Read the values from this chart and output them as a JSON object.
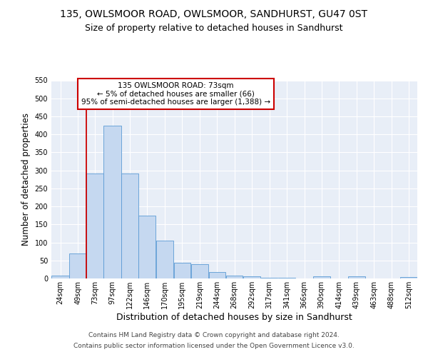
{
  "title1": "135, OWLSMOOR ROAD, OWLSMOOR, SANDHURST, GU47 0ST",
  "title2": "Size of property relative to detached houses in Sandhurst",
  "xlabel": "Distribution of detached houses by size in Sandhurst",
  "ylabel": "Number of detached properties",
  "bin_labels": [
    "24sqm",
    "49sqm",
    "73sqm",
    "97sqm",
    "122sqm",
    "146sqm",
    "170sqm",
    "195sqm",
    "219sqm",
    "244sqm",
    "268sqm",
    "292sqm",
    "317sqm",
    "341sqm",
    "366sqm",
    "390sqm",
    "414sqm",
    "439sqm",
    "463sqm",
    "488sqm",
    "512sqm"
  ],
  "bar_heights": [
    8,
    70,
    291,
    424,
    291,
    175,
    105,
    44,
    39,
    18,
    8,
    5,
    2,
    2,
    0,
    6,
    0,
    5,
    0,
    0,
    4
  ],
  "bar_color": "#c5d8f0",
  "bar_edge_color": "#5b9bd5",
  "vline_x": 73,
  "vline_color": "#cc0000",
  "annotation_text": "135 OWLSMOOR ROAD: 73sqm\n← 5% of detached houses are smaller (66)\n95% of semi-detached houses are larger (1,388) →",
  "annotation_box_color": "white",
  "annotation_box_edge": "#cc0000",
  "ylim": [
    0,
    550
  ],
  "bin_edges": [
    24,
    49,
    73,
    97,
    122,
    146,
    170,
    195,
    219,
    244,
    268,
    292,
    317,
    341,
    366,
    390,
    414,
    439,
    463,
    488,
    512,
    536
  ],
  "footer_line1": "Contains HM Land Registry data © Crown copyright and database right 2024.",
  "footer_line2": "Contains public sector information licensed under the Open Government Licence v3.0.",
  "background_color": "#e8eef7",
  "grid_color": "white",
  "title1_fontsize": 10,
  "title2_fontsize": 9,
  "xlabel_fontsize": 9,
  "ylabel_fontsize": 8.5,
  "footer_fontsize": 6.5,
  "tick_fontsize": 7,
  "annot_fontsize": 7.5
}
